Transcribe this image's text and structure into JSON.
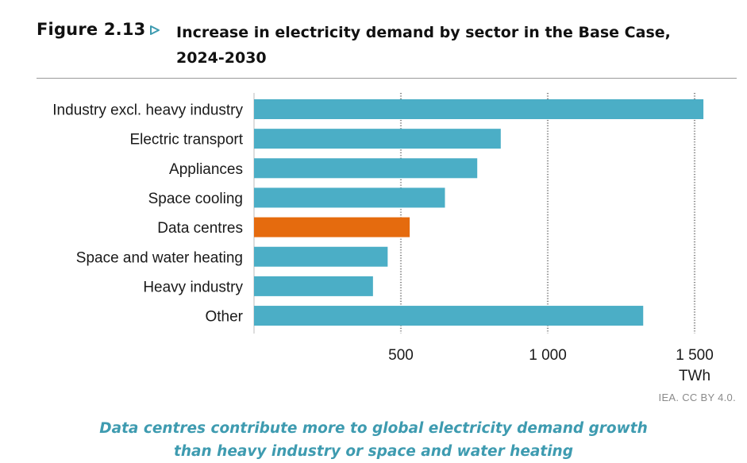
{
  "figure": {
    "label": "Figure 2.13",
    "title": "Increase in electricity demand by sector in the Base Case, 2024-2030",
    "title_line1": "Increase in electricity demand by sector in the Base Case,",
    "title_line2": "2024-2030",
    "source": "IEA. CC BY 4.0.",
    "caption_line1": "Data centres contribute more to global electricity demand growth",
    "caption_line2": "than heavy industry or space and water heating",
    "arrow_icon": "play-outline-icon",
    "arrow_color": "#3e9bb0"
  },
  "chart_data": {
    "type": "bar",
    "orientation": "horizontal",
    "categories": [
      "Industry excl. heavy industry",
      "Electric transport",
      "Appliances",
      "Space cooling",
      "Data centres",
      "Space and water heating",
      "Heavy industry",
      "Other"
    ],
    "values": [
      1530,
      840,
      760,
      650,
      530,
      455,
      405,
      1325
    ],
    "xlim": [
      0,
      1500
    ],
    "xticks": [
      500,
      1000,
      1500
    ],
    "xtick_labels": [
      "500",
      "1 000",
      "1 500"
    ],
    "xlabel": "TWh",
    "grid": "vertical dotted at ticks",
    "colors": {
      "default": "#4baec6",
      "highlight": "#e56b0e"
    },
    "highlight_category": "Data centres"
  }
}
